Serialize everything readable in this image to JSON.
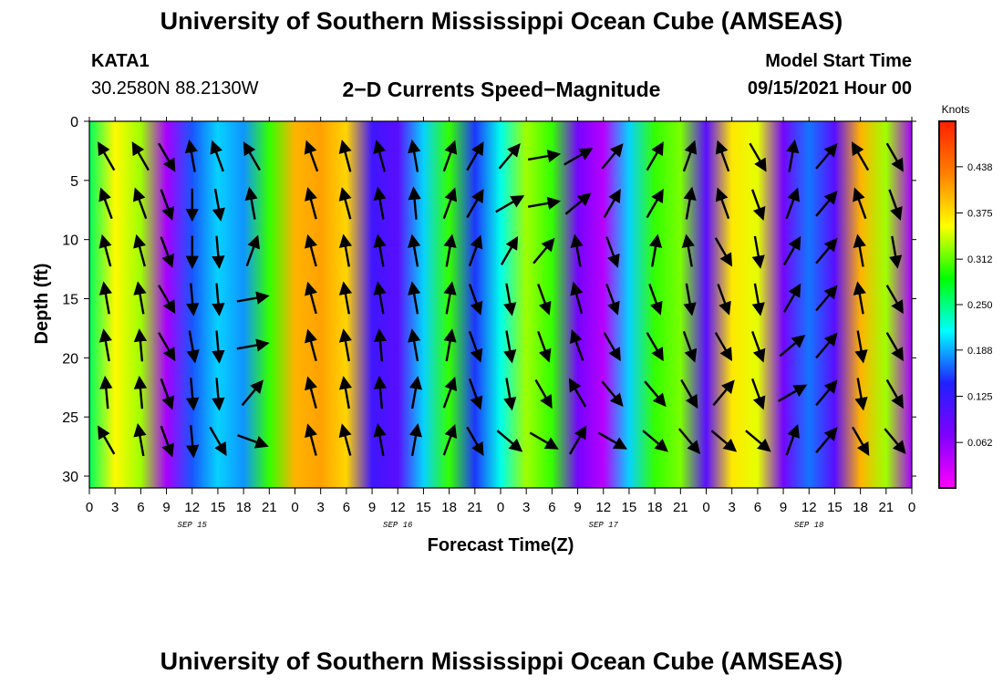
{
  "page": {
    "title_top": "University of Southern Mississippi Ocean Cube (AMSEAS)",
    "title_bottom": "University of Southern Mississippi Ocean Cube (AMSEAS)",
    "station_id": "KATA1",
    "station_coords": "30.2580N  88.2130W",
    "plot_title": "2−D Currents Speed−Magnitude",
    "model_start_label": "Model Start Time",
    "model_start_value": "09/15/2021 Hour 00"
  },
  "chart_data": {
    "type": "heatmap",
    "title": "2−D Currents Speed−Magnitude",
    "xlabel": "Forecast Time(Z)",
    "ylabel": "Depth (ft)",
    "xlim": [
      0,
      96
    ],
    "ylim": [
      31,
      0
    ],
    "x_tick_hours": [
      0,
      3,
      6,
      9,
      12,
      15,
      18,
      21,
      24,
      27,
      30,
      33,
      36,
      39,
      42,
      45,
      48,
      51,
      54,
      57,
      60,
      63,
      66,
      69,
      72,
      75,
      78,
      81,
      84,
      87,
      90,
      93,
      96
    ],
    "x_tick_labels": [
      "0",
      "3",
      "6",
      "9",
      "12",
      "15",
      "18",
      "21",
      "0",
      "3",
      "6",
      "9",
      "12",
      "15",
      "18",
      "21",
      "0",
      "3",
      "6",
      "9",
      "12",
      "15",
      "18",
      "21",
      "0",
      "3",
      "6",
      "9",
      "12",
      "15",
      "18",
      "21",
      "0"
    ],
    "y_ticks": [
      0,
      5,
      10,
      15,
      20,
      25,
      30
    ],
    "day_labels": [
      {
        "hour": 12,
        "text": "SEP 15"
      },
      {
        "hour": 36,
        "text": "SEP 16"
      },
      {
        "hour": 60,
        "text": "SEP 17"
      },
      {
        "hour": 84,
        "text": "SEP 18"
      }
    ],
    "colorbar": {
      "unit": "Knots",
      "min": 0.0,
      "max": 0.5,
      "ticks": [
        0.062,
        0.125,
        0.188,
        0.25,
        0.312,
        0.375,
        0.438
      ],
      "tick_labels": [
        "0.062",
        "0.125",
        "0.188",
        "0.250",
        "0.312",
        "0.375",
        "0.438"
      ],
      "colors": [
        "#ff00ff",
        "#8000ff",
        "#2020ff",
        "#00ffff",
        "#00ff00",
        "#ffff00",
        "#ff8000",
        "#ff2000"
      ]
    },
    "depth_levels_ft": [
      0,
      3,
      6,
      9,
      12,
      15,
      18,
      21,
      24,
      27,
      30
    ],
    "hour_columns": [
      0,
      3,
      6,
      9,
      12,
      15,
      18,
      21,
      24,
      27,
      30,
      33,
      36,
      39,
      42,
      45,
      48,
      51,
      54,
      57,
      60,
      63,
      66,
      69,
      72,
      75,
      78,
      81,
      84,
      87,
      90,
      93,
      96
    ],
    "speed_profile_by_hour": [
      0.26,
      0.36,
      0.33,
      0.05,
      0.16,
      0.2,
      0.18,
      0.3,
      0.4,
      0.41,
      0.38,
      0.12,
      0.1,
      0.2,
      0.3,
      0.15,
      0.22,
      0.33,
      0.3,
      0.08,
      0.04,
      0.2,
      0.3,
      0.32,
      0.1,
      0.37,
      0.35,
      0.08,
      0.17,
      0.1,
      0.4,
      0.33,
      0.05
    ],
    "arrow_hours": [
      2,
      6,
      9,
      12,
      15,
      19,
      26,
      30,
      34,
      38,
      42,
      45,
      49,
      53,
      57,
      61,
      66,
      70,
      74,
      78,
      82,
      86,
      90,
      94
    ],
    "arrow_depths_ft": [
      3,
      7,
      11,
      15,
      19,
      23,
      27
    ],
    "arrow_direction_deg": [
      [
        330,
        330,
        150,
        350,
        340,
        330,
        340,
        345,
        345,
        350,
        20,
        30,
        40,
        80,
        60,
        40,
        30,
        20,
        340,
        150,
        10,
        40,
        330,
        150
      ],
      [
        340,
        340,
        160,
        180,
        170,
        350,
        345,
        345,
        350,
        355,
        20,
        30,
        60,
        80,
        50,
        30,
        30,
        10,
        340,
        160,
        20,
        40,
        340,
        160
      ],
      [
        345,
        345,
        160,
        180,
        175,
        20,
        345,
        350,
        350,
        350,
        10,
        20,
        30,
        40,
        350,
        160,
        10,
        350,
        150,
        170,
        30,
        40,
        350,
        170
      ],
      [
        350,
        350,
        150,
        175,
        175,
        80,
        345,
        350,
        350,
        350,
        10,
        160,
        170,
        160,
        345,
        160,
        160,
        170,
        160,
        170,
        30,
        40,
        350,
        150
      ],
      [
        350,
        355,
        150,
        170,
        175,
        80,
        345,
        350,
        355,
        350,
        10,
        160,
        170,
        160,
        340,
        150,
        150,
        160,
        150,
        160,
        50,
        40,
        170,
        150
      ],
      [
        355,
        355,
        160,
        175,
        175,
        40,
        345,
        350,
        355,
        10,
        20,
        160,
        170,
        150,
        330,
        140,
        140,
        150,
        40,
        160,
        60,
        40,
        170,
        150
      ],
      [
        330,
        350,
        160,
        175,
        150,
        110,
        345,
        345,
        350,
        10,
        20,
        150,
        130,
        120,
        30,
        120,
        130,
        140,
        130,
        130,
        20,
        40,
        150,
        140
      ]
    ]
  }
}
